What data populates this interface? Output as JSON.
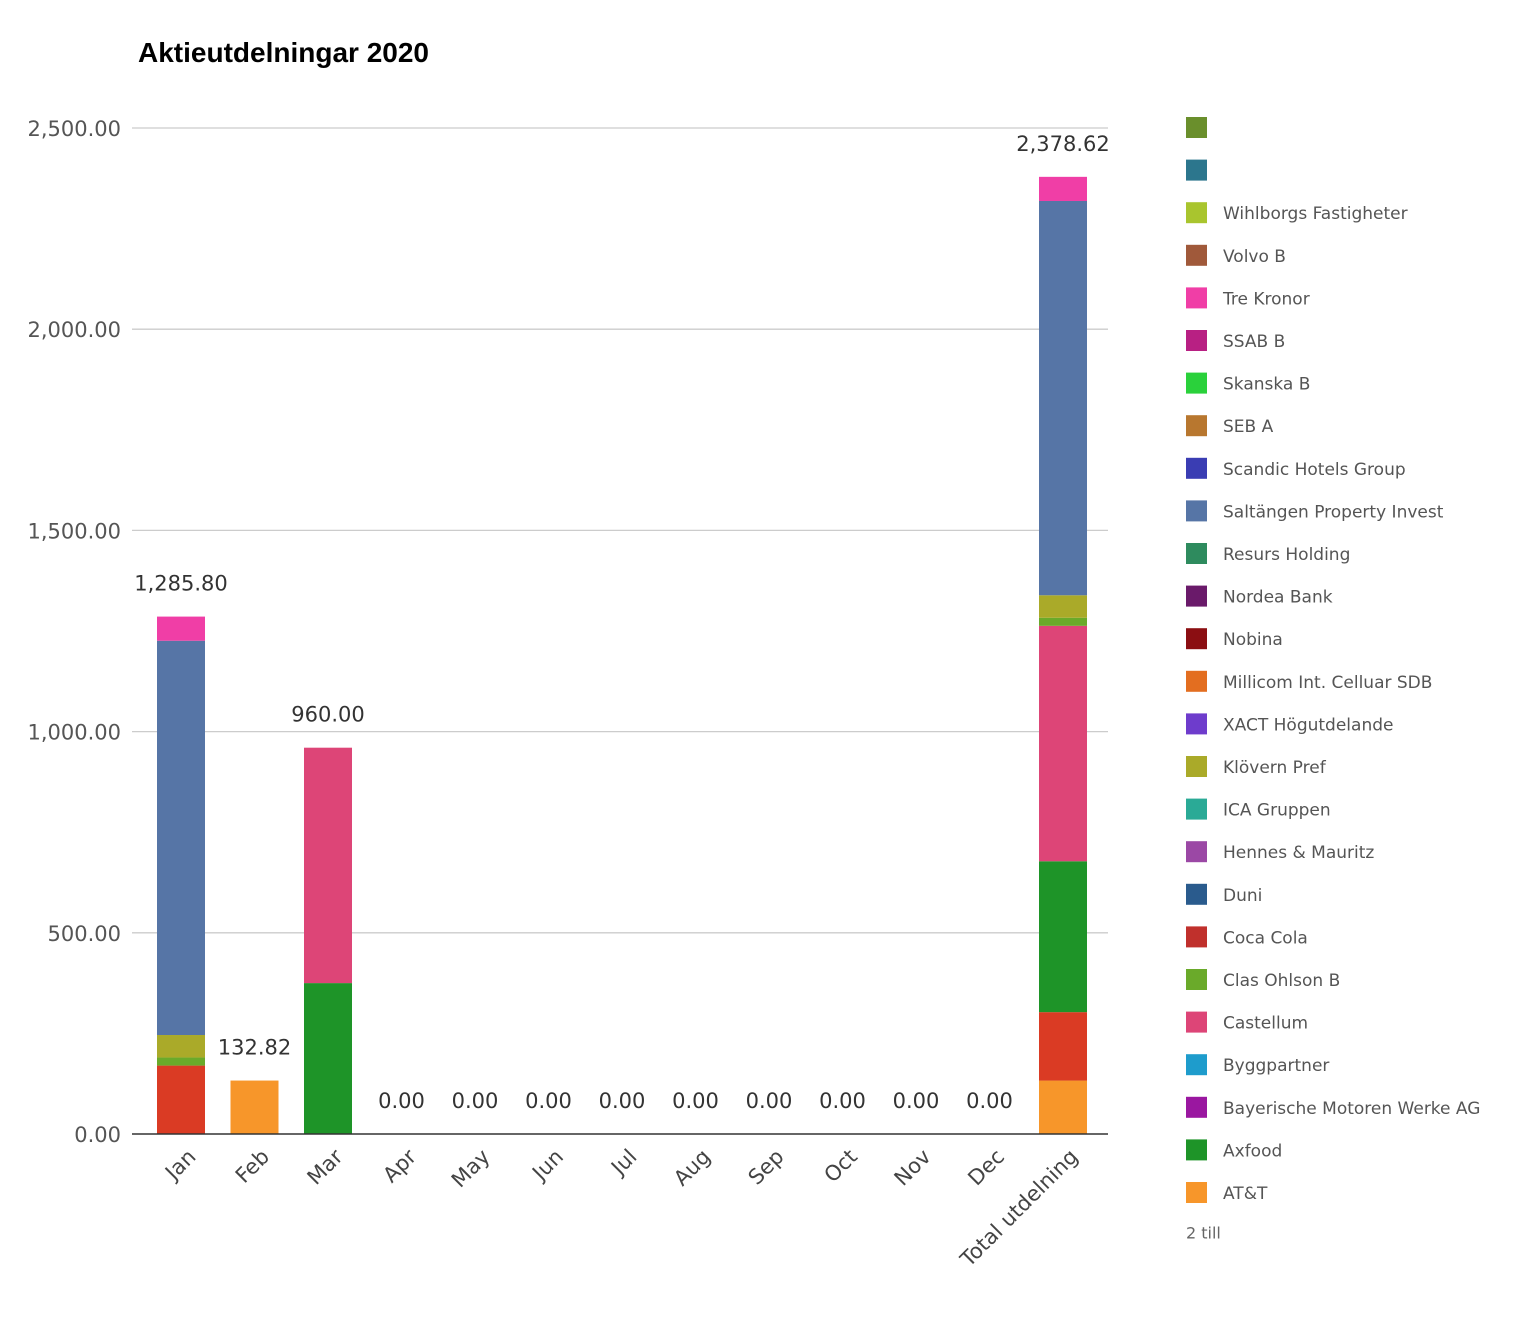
{
  "chart_data": {
    "type": "bar",
    "stacked": true,
    "title": "Aktieutdelningar 2020",
    "categories": [
      "Jan",
      "Feb",
      "Mar",
      "Apr",
      "May",
      "Jun",
      "Jul",
      "Aug",
      "Sep",
      "Oct",
      "Nov",
      "Dec",
      "Total utdelning"
    ],
    "y_ticks": [
      "0.00",
      "500.00",
      "1,000.00",
      "1,500.00",
      "2,000.00",
      "2,500.00"
    ],
    "ylim": [
      0,
      2500
    ],
    "grid": true,
    "legend_position": "right",
    "totals": [
      "1,285.80",
      "132.82",
      "960.00",
      "0.00",
      "0.00",
      "0.00",
      "0.00",
      "0.00",
      "0.00",
      "0.00",
      "0.00",
      "0.00",
      "2,378.62"
    ],
    "series": [
      {
        "name": "AT&T",
        "color": "#f7962a",
        "values": [
          0,
          132.82,
          0,
          0,
          0,
          0,
          0,
          0,
          0,
          0,
          0,
          0,
          132.82
        ]
      },
      {
        "name": "Coca Cola",
        "color": "#da3b24",
        "values": [
          170,
          0,
          0,
          0,
          0,
          0,
          0,
          0,
          0,
          0,
          0,
          0,
          170
        ]
      },
      {
        "name": "Axfood",
        "color": "#1e9428",
        "values": [
          0,
          0,
          375,
          0,
          0,
          0,
          0,
          0,
          0,
          0,
          0,
          0,
          375
        ]
      },
      {
        "name": "Castellum",
        "color": "#dd4577",
        "values": [
          0,
          0,
          585,
          0,
          0,
          0,
          0,
          0,
          0,
          0,
          0,
          0,
          585
        ]
      },
      {
        "name": "Clas Ohlson B",
        "color": "#6aaa2a",
        "values": [
          20,
          0,
          0,
          0,
          0,
          0,
          0,
          0,
          0,
          0,
          0,
          0,
          20
        ]
      },
      {
        "name": "Klövern Pref",
        "color": "#aaaa29",
        "values": [
          56,
          0,
          0,
          0,
          0,
          0,
          0,
          0,
          0,
          0,
          0,
          0,
          56
        ]
      },
      {
        "name": "Saltängen Property Invest",
        "color": "#5675a6",
        "values": [
          979.8,
          0,
          0,
          0,
          0,
          0,
          0,
          0,
          0,
          0,
          0,
          0,
          979.8
        ]
      },
      {
        "name": "Tre Kronor",
        "color": "#f03ea6",
        "values": [
          60,
          0,
          0,
          0,
          0,
          0,
          0,
          0,
          0,
          0,
          0,
          0,
          60
        ]
      }
    ],
    "legend": [
      {
        "name": "",
        "color": "#6a8f2c"
      },
      {
        "name": "",
        "color": "#2c768d"
      },
      {
        "name": "Wihlborgs Fastigheter",
        "color": "#a9c52e"
      },
      {
        "name": "Volvo B",
        "color": "#a0593a"
      },
      {
        "name": "Tre Kronor",
        "color": "#f03ea6"
      },
      {
        "name": "SSAB B",
        "color": "#b82083"
      },
      {
        "name": "Skanska B",
        "color": "#2ad13b"
      },
      {
        "name": "SEB A",
        "color": "#b8772f"
      },
      {
        "name": "Scandic Hotels Group",
        "color": "#3a3db3"
      },
      {
        "name": "Saltängen Property Invest",
        "color": "#5675a6"
      },
      {
        "name": "Resurs Holding",
        "color": "#2e8b5e"
      },
      {
        "name": "Nordea Bank",
        "color": "#6a1a6a"
      },
      {
        "name": "Nobina",
        "color": "#8b0e12"
      },
      {
        "name": "Millicom Int. Celluar SDB",
        "color": "#e36e20"
      },
      {
        "name": "XACT Högutdelande",
        "color": "#6e3ccc"
      },
      {
        "name": "Klövern Pref",
        "color": "#aaaa29"
      },
      {
        "name": "ICA Gruppen",
        "color": "#2aaa96"
      },
      {
        "name": "Hennes & Mauritz",
        "color": "#9b48a5"
      },
      {
        "name": "Duni",
        "color": "#2a5b8d"
      },
      {
        "name": "Coca Cola",
        "color": "#c0302c"
      },
      {
        "name": "Clas Ohlson B",
        "color": "#6aaa2a"
      },
      {
        "name": "Castellum",
        "color": "#dd4577"
      },
      {
        "name": "Byggpartner",
        "color": "#1e9ccc"
      },
      {
        "name": "Bayerische Motoren Werke AG",
        "color": "#9a17a0"
      },
      {
        "name": "Axfood",
        "color": "#1e9428"
      },
      {
        "name": "AT&T",
        "color": "#f7962a"
      }
    ],
    "legend_more": "2 till"
  }
}
